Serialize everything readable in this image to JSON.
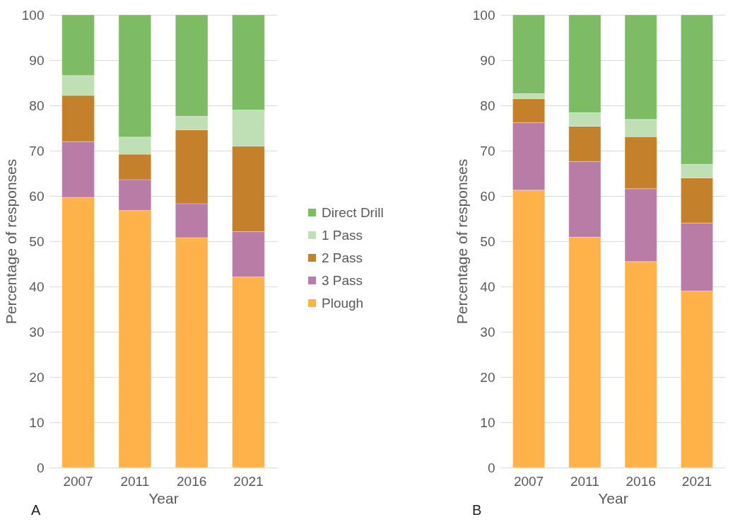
{
  "chart_data": [
    {
      "type": "bar",
      "stacked": true,
      "xlabel": "Year",
      "ylabel": "Percentage of responses",
      "categories": [
        "2007",
        "2011",
        "2016",
        "2021"
      ],
      "ylim": [
        0,
        100
      ],
      "yticks": [
        0,
        10,
        20,
        30,
        40,
        50,
        60,
        70,
        80,
        90,
        100
      ],
      "grid": "y",
      "legend": "right",
      "annotations": [
        "A"
      ],
      "series": [
        {
          "name": "Plough",
          "color": "#ffb24a",
          "values": [
            59.7,
            56.8,
            50.8,
            42.1
          ]
        },
        {
          "name": "3 Pass",
          "color": "#b97ca7",
          "values": [
            12.3,
            6.8,
            7.5,
            10.0
          ]
        },
        {
          "name": "2 Pass",
          "color": "#c5802b",
          "values": [
            10.2,
            5.6,
            16.3,
            18.9
          ]
        },
        {
          "name": "1 Pass",
          "color": "#bfdfb4",
          "values": [
            4.4,
            3.8,
            3.0,
            8.0
          ]
        },
        {
          "name": "Direct Drill",
          "color": "#7dbb64",
          "values": [
            13.4,
            27.0,
            22.4,
            21.0
          ]
        }
      ]
    },
    {
      "type": "bar",
      "stacked": true,
      "xlabel": "Year",
      "ylabel": "Percentage of responses",
      "categories": [
        "2007",
        "2011",
        "2016",
        "2021"
      ],
      "ylim": [
        0,
        100
      ],
      "yticks": [
        0,
        10,
        20,
        30,
        40,
        50,
        60,
        70,
        80,
        90,
        100
      ],
      "grid": "y",
      "annotations": [
        "B"
      ],
      "series": [
        {
          "color": "#ffb24a",
          "values": [
            61.3,
            50.9,
            45.5,
            39.0
          ]
        },
        {
          "color": "#b97ca7",
          "values": [
            14.9,
            16.7,
            16.1,
            15.0
          ]
        },
        {
          "color": "#c5802b",
          "values": [
            5.3,
            7.8,
            11.5,
            10.0
          ]
        },
        {
          "color": "#bfdfb4",
          "values": [
            1.1,
            3.0,
            3.8,
            3.0
          ]
        },
        {
          "color": "#7dbb64",
          "values": [
            17.4,
            21.6,
            23.1,
            33.0
          ]
        }
      ]
    }
  ]
}
